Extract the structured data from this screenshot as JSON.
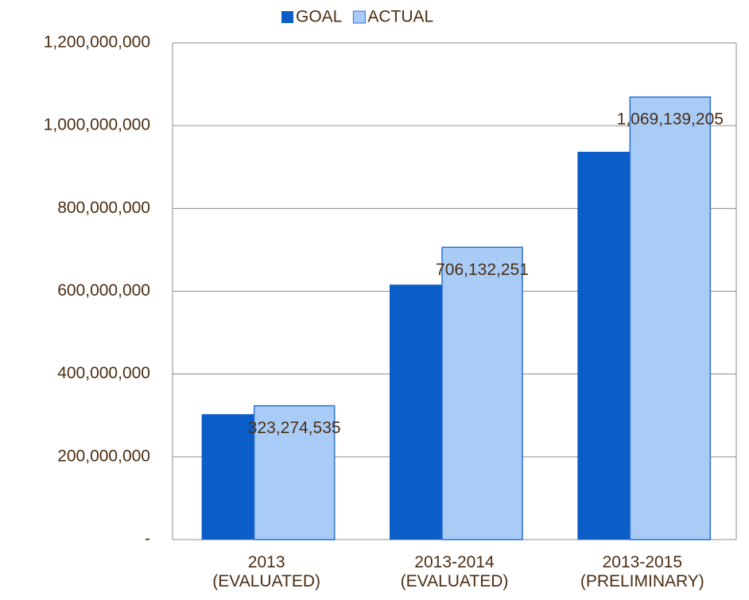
{
  "chart_data": {
    "type": "bar",
    "categories": [
      "2013\n(EVALUATED)",
      "2013-2014\n(EVALUATED)",
      "2013-2015\n(PRELIMINARY)"
    ],
    "series": [
      {
        "name": "GOAL",
        "color": "#0b5dc8",
        "values": [
          303000000,
          616000000,
          937000000
        ]
      },
      {
        "name": "ACTUAL",
        "color": "#a9ccf7",
        "values": [
          323274535,
          706132251,
          1069139205
        ],
        "value_labels": [
          "323,274,535",
          "706,132,251",
          "1,069,139,205"
        ]
      }
    ],
    "ylim": [
      0,
      1200000000
    ],
    "yticks": [
      {
        "value": 0,
        "label": "-"
      },
      {
        "value": 200000000,
        "label": "200,000,000"
      },
      {
        "value": 400000000,
        "label": "400,000,000"
      },
      {
        "value": 600000000,
        "label": "600,000,000"
      },
      {
        "value": 800000000,
        "label": "800,000,000"
      },
      {
        "value": 1000000000,
        "label": "1,000,000,000"
      },
      {
        "value": 1200000000,
        "label": "1,200,000,000"
      }
    ],
    "grid": true,
    "legend": "top"
  }
}
